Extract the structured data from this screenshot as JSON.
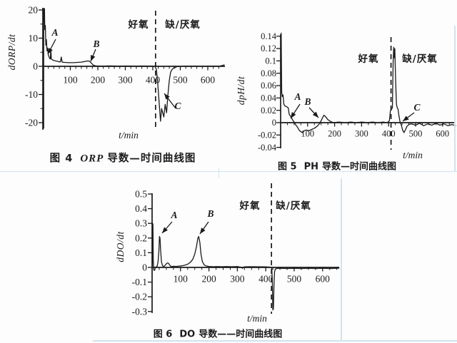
{
  "page": {
    "ink": "#1a1a1a",
    "scan_line_color": "#cfe4f1",
    "background": "#fdfdfd"
  },
  "chart_data": [
    {
      "type": "line",
      "figure_no": "图 4",
      "title_latin": "ORP",
      "title_rest": "导数—时间曲线图",
      "ylabel": "dORP/dt",
      "xlabel": "t/min",
      "phase_left": "好氧",
      "phase_right": "缺/厌氧",
      "phase_line_x": 410,
      "xlim": [
        0,
        662
      ],
      "ylim": [
        -22.6,
        20.8
      ],
      "xticks": [
        100,
        200,
        300,
        400,
        500,
        600
      ],
      "xtick_labels": [
        "100",
        "200",
        "300",
        "400",
        "500",
        "600"
      ],
      "x_minor_step": 20,
      "yticks": [
        20,
        10,
        0,
        -10,
        -20
      ],
      "ytick_labels": [
        "20",
        "10",
        "0",
        "-10",
        "-20"
      ],
      "y_minor_ticks": [
        15,
        5,
        -5,
        -15
      ],
      "annotations": [
        "A",
        "B",
        "C"
      ],
      "curve": [
        [
          3,
          -22
        ],
        [
          3,
          20.5
        ],
        [
          6,
          20.5
        ],
        [
          7,
          13
        ],
        [
          9,
          14.5
        ],
        [
          11,
          7.5
        ],
        [
          13,
          9.5
        ],
        [
          15,
          5.5
        ],
        [
          17,
          6.5
        ],
        [
          20,
          4
        ],
        [
          24,
          3
        ],
        [
          27,
          2.6
        ],
        [
          29,
          6
        ],
        [
          31,
          2.6
        ],
        [
          36,
          2.2
        ],
        [
          43,
          2
        ],
        [
          52,
          1.8
        ],
        [
          60,
          1.6
        ],
        [
          64,
          1.6
        ],
        [
          67,
          3.3
        ],
        [
          70,
          1.5
        ],
        [
          80,
          1.4
        ],
        [
          95,
          1.3
        ],
        [
          110,
          1.3
        ],
        [
          125,
          1.4
        ],
        [
          140,
          1.5
        ],
        [
          152,
          1.7
        ],
        [
          162,
          1.9
        ],
        [
          170,
          1.8
        ],
        [
          177,
          1.1
        ],
        [
          184,
          0.4
        ],
        [
          192,
          0.15
        ],
        [
          215,
          0.1
        ],
        [
          245,
          0.15
        ],
        [
          275,
          0.1
        ],
        [
          305,
          0.12
        ],
        [
          335,
          0.1
        ],
        [
          365,
          0.12
        ],
        [
          395,
          0.1
        ],
        [
          407,
          0.05
        ],
        [
          413,
          -1
        ],
        [
          418,
          -6
        ],
        [
          423,
          -13
        ],
        [
          428,
          -19.5
        ],
        [
          432,
          -15
        ],
        [
          436,
          -16.5
        ],
        [
          440,
          -18
        ],
        [
          445,
          -13.5
        ],
        [
          450,
          -16.5
        ],
        [
          455,
          -10
        ],
        [
          460,
          -5
        ],
        [
          465,
          -2
        ],
        [
          471,
          -1
        ],
        [
          478,
          -0.4
        ],
        [
          490,
          -0.1
        ],
        [
          510,
          0.05
        ],
        [
          545,
          0.1
        ],
        [
          580,
          0.05
        ],
        [
          615,
          0.1
        ],
        [
          645,
          0.1
        ],
        [
          660,
          0.5
        ]
      ]
    },
    {
      "type": "line",
      "figure_no": "图 5",
      "title_latin": "PH",
      "title_rest": "导数—时间曲线图",
      "ylabel": "dpH/dt",
      "xlabel": "t/min",
      "phase_left": "好氧",
      "phase_right": "缺/厌氧",
      "phase_line_x": 409,
      "xlim": [
        0,
        648
      ],
      "ylim": [
        -0.0424,
        0.1433
      ],
      "xticks": [
        100,
        200,
        300,
        400,
        500,
        600
      ],
      "xtick_labels": [
        "100",
        "200",
        "300",
        "400",
        "500",
        "600"
      ],
      "x_minor_step": 25,
      "yticks": [
        0.14,
        0.12,
        0.1,
        0.08,
        0.06,
        0.04,
        0.02,
        0,
        -0.02,
        -0.04
      ],
      "ytick_labels": [
        "0.14",
        "0.12",
        "0.1",
        "0.08",
        "0.06",
        "0.04",
        "0.02",
        "0",
        "-0.02",
        "-0.04"
      ],
      "y_minor_ticks": [],
      "annotations": [
        "A",
        "B",
        "C"
      ],
      "curve": [
        [
          2,
          0.145
        ],
        [
          3,
          0.1
        ],
        [
          4,
          0.05
        ],
        [
          6,
          0.042
        ],
        [
          9,
          0.045
        ],
        [
          12,
          0.03
        ],
        [
          16,
          0.027
        ],
        [
          22,
          0.026
        ],
        [
          28,
          0.024
        ],
        [
          32,
          0.013
        ],
        [
          36,
          0.011
        ],
        [
          40,
          0.008
        ],
        [
          45,
          0.004
        ],
        [
          50,
          0.001
        ],
        [
          55,
          -0.003
        ],
        [
          62,
          -0.007
        ],
        [
          70,
          -0.013
        ],
        [
          80,
          -0.016
        ],
        [
          88,
          -0.013
        ],
        [
          95,
          -0.012
        ],
        [
          105,
          -0.013
        ],
        [
          115,
          -0.011
        ],
        [
          125,
          -0.009
        ],
        [
          135,
          -0.006
        ],
        [
          145,
          -0.001
        ],
        [
          152,
          0.005
        ],
        [
          160,
          0.012
        ],
        [
          166,
          0.01
        ],
        [
          175,
          0.005
        ],
        [
          185,
          0.002
        ],
        [
          195,
          0
        ],
        [
          215,
          0.001
        ],
        [
          240,
          0
        ],
        [
          260,
          0.001
        ],
        [
          280,
          0
        ],
        [
          300,
          0.001
        ],
        [
          320,
          0
        ],
        [
          340,
          0.001
        ],
        [
          360,
          0
        ],
        [
          380,
          0.001
        ],
        [
          395,
          0
        ],
        [
          403,
          0.003
        ],
        [
          407,
          0.02
        ],
        [
          411,
          0.022
        ],
        [
          414,
          0.024
        ],
        [
          417,
          0.1
        ],
        [
          419,
          0.122
        ],
        [
          421,
          0.105
        ],
        [
          423,
          0.12
        ],
        [
          426,
          0.07
        ],
        [
          429,
          0.03
        ],
        [
          432,
          0.024
        ],
        [
          435,
          0.022
        ],
        [
          438,
          0.012
        ],
        [
          442,
          0.002
        ],
        [
          447,
          -0.004
        ],
        [
          452,
          -0.012
        ],
        [
          457,
          -0.016
        ],
        [
          462,
          -0.012
        ],
        [
          468,
          -0.006
        ],
        [
          475,
          -0.003
        ],
        [
          485,
          -0.002
        ],
        [
          500,
          -0.004
        ],
        [
          515,
          -0.001
        ],
        [
          530,
          -0.005
        ],
        [
          545,
          -0.002
        ],
        [
          560,
          -0.004
        ],
        [
          575,
          -0.001
        ],
        [
          590,
          -0.004
        ],
        [
          605,
          -0.002
        ],
        [
          620,
          -0.005
        ],
        [
          635,
          -0.003
        ],
        [
          648,
          -0.005
        ]
      ]
    },
    {
      "type": "line",
      "figure_no": "图 6",
      "title_latin": "DO",
      "title_rest": "导数——时间曲线图",
      "ylabel": "dDO/dt",
      "xlabel": "t/min",
      "phase_left": "好氧",
      "phase_right": "缺/厌氧",
      "phase_line_x": 420,
      "xlim": [
        0,
        658
      ],
      "ylim": [
        -0.312,
        0.503
      ],
      "xticks": [
        100,
        200,
        300,
        400,
        500,
        600
      ],
      "xtick_labels": [
        "100",
        "200",
        "300",
        "400",
        "500",
        "600"
      ],
      "x_minor_step": 25,
      "yticks": [
        0.5,
        0.4,
        0.3,
        0.2,
        0.1,
        0,
        -0.1,
        -0.2,
        -0.3
      ],
      "ytick_labels": [
        "0.5",
        "0.4",
        "0.3",
        "0.2",
        "0.1",
        "0",
        "-0.1",
        "-0.2",
        "-0.3"
      ],
      "y_minor_ticks": [],
      "annotations": [
        "A",
        "B"
      ],
      "curve": [
        [
          1,
          0.005
        ],
        [
          2,
          0.3
        ],
        [
          3,
          0.29
        ],
        [
          4,
          0.05
        ],
        [
          6,
          -0.018
        ],
        [
          9,
          -0.02
        ],
        [
          11,
          -0.005
        ],
        [
          14,
          0.003
        ],
        [
          18,
          0.01
        ],
        [
          21,
          0.04
        ],
        [
          24,
          0.12
        ],
        [
          26,
          0.21
        ],
        [
          28,
          0.2
        ],
        [
          30,
          0.12
        ],
        [
          33,
          0.04
        ],
        [
          36,
          0.015
        ],
        [
          40,
          0.006
        ],
        [
          44,
          0.01
        ],
        [
          48,
          0.02
        ],
        [
          53,
          0.03
        ],
        [
          58,
          0.028
        ],
        [
          62,
          0.015
        ],
        [
          67,
          0.006
        ],
        [
          75,
          0.008
        ],
        [
          85,
          0.007
        ],
        [
          95,
          0.009
        ],
        [
          105,
          0.011
        ],
        [
          115,
          0.015
        ],
        [
          125,
          0.022
        ],
        [
          135,
          0.035
        ],
        [
          143,
          0.055
        ],
        [
          150,
          0.09
        ],
        [
          156,
          0.14
        ],
        [
          161,
          0.2
        ],
        [
          164,
          0.21
        ],
        [
          168,
          0.17
        ],
        [
          172,
          0.09
        ],
        [
          177,
          0.04
        ],
        [
          183,
          0.018
        ],
        [
          190,
          0.01
        ],
        [
          200,
          0.007
        ],
        [
          215,
          0.005
        ],
        [
          230,
          0.006
        ],
        [
          245,
          0.005
        ],
        [
          260,
          0.006
        ],
        [
          280,
          0.005
        ],
        [
          300,
          0.006
        ],
        [
          312,
          0.002
        ],
        [
          318,
          -0.006
        ],
        [
          324,
          0.004
        ],
        [
          340,
          0.005
        ],
        [
          360,
          0.005
        ],
        [
          380,
          0.004
        ],
        [
          395,
          0.004
        ],
        [
          408,
          0.003
        ],
        [
          416,
          0.002
        ],
        [
          421,
          -0.003
        ],
        [
          423,
          -0.1
        ],
        [
          425,
          -0.29
        ],
        [
          427,
          -0.28
        ],
        [
          429,
          -0.12
        ],
        [
          431,
          -0.03
        ],
        [
          434,
          -0.01
        ],
        [
          440,
          -0.007
        ],
        [
          455,
          -0.006
        ],
        [
          475,
          -0.008
        ],
        [
          500,
          -0.006
        ],
        [
          525,
          -0.008
        ],
        [
          550,
          -0.006
        ],
        [
          575,
          -0.008
        ],
        [
          600,
          -0.006
        ],
        [
          625,
          -0.008
        ],
        [
          650,
          -0.006
        ],
        [
          658,
          -0.005
        ]
      ]
    }
  ]
}
